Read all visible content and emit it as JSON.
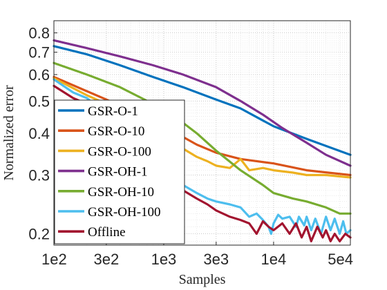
{
  "chart_data": {
    "type": "line",
    "xlabel": "Samples",
    "ylabel": "Normalized error",
    "x_scale": "log",
    "y_scale": "log",
    "xlim": [
      100,
      50000
    ],
    "ylim": [
      0.185,
      0.87
    ],
    "x_ticks": [
      {
        "value": 100,
        "label": "1e2"
      },
      {
        "value": 300,
        "label": "3e2"
      },
      {
        "value": 1000,
        "label": "1e3"
      },
      {
        "value": 3000,
        "label": "3e3"
      },
      {
        "value": 10000,
        "label": "1e4"
      },
      {
        "value": 50000,
        "label": "5e4"
      }
    ],
    "y_ticks": [
      {
        "value": 0.2,
        "label": "0.2"
      },
      {
        "value": 0.3,
        "label": "0.3"
      },
      {
        "value": 0.4,
        "label": "0.4"
      },
      {
        "value": 0.5,
        "label": "0.5"
      },
      {
        "value": 0.6,
        "label": "0.6"
      },
      {
        "value": 0.7,
        "label": "0.7"
      },
      {
        "value": 0.8,
        "label": "0.8"
      }
    ],
    "grid": true,
    "legend_position": "bottom-left",
    "series": [
      {
        "name": "GSR-O-1",
        "color": "#0072BD",
        "points": [
          [
            100,
            0.73
          ],
          [
            200,
            0.69
          ],
          [
            400,
            0.64
          ],
          [
            800,
            0.59
          ],
          [
            1500,
            0.55
          ],
          [
            3000,
            0.505
          ],
          [
            5000,
            0.475
          ],
          [
            10000,
            0.42
          ],
          [
            20000,
            0.385
          ],
          [
            50000,
            0.345
          ]
        ]
      },
      {
        "name": "GSR-O-10",
        "color": "#D95319",
        "points": [
          [
            100,
            0.59
          ],
          [
            200,
            0.535
          ],
          [
            400,
            0.485
          ],
          [
            700,
            0.44
          ],
          [
            1000,
            0.415
          ],
          [
            1500,
            0.39
          ],
          [
            2000,
            0.37
          ],
          [
            3000,
            0.35
          ],
          [
            5000,
            0.335
          ],
          [
            10000,
            0.325
          ],
          [
            20000,
            0.31
          ],
          [
            50000,
            0.3
          ]
        ]
      },
      {
        "name": "GSR-O-100",
        "color": "#EDB120",
        "points": [
          [
            100,
            0.585
          ],
          [
            200,
            0.52
          ],
          [
            300,
            0.49
          ],
          [
            400,
            0.455
          ],
          [
            600,
            0.43
          ],
          [
            800,
            0.405
          ],
          [
            1200,
            0.375
          ],
          [
            1500,
            0.36
          ],
          [
            2000,
            0.34
          ],
          [
            2500,
            0.33
          ],
          [
            3000,
            0.32
          ],
          [
            4000,
            0.315
          ],
          [
            5000,
            0.335
          ],
          [
            6000,
            0.31
          ],
          [
            8000,
            0.315
          ],
          [
            10000,
            0.31
          ],
          [
            15000,
            0.305
          ],
          [
            20000,
            0.3
          ],
          [
            30000,
            0.3
          ],
          [
            50000,
            0.295
          ]
        ]
      },
      {
        "name": "GSR-OH-1",
        "color": "#7E2F8E",
        "points": [
          [
            100,
            0.76
          ],
          [
            200,
            0.72
          ],
          [
            400,
            0.68
          ],
          [
            800,
            0.64
          ],
          [
            1500,
            0.6
          ],
          [
            3000,
            0.55
          ],
          [
            5000,
            0.5
          ],
          [
            8000,
            0.455
          ],
          [
            12000,
            0.415
          ],
          [
            20000,
            0.375
          ],
          [
            30000,
            0.345
          ],
          [
            50000,
            0.32
          ]
        ]
      },
      {
        "name": "GSR-OH-10",
        "color": "#77AC30",
        "points": [
          [
            100,
            0.65
          ],
          [
            200,
            0.6
          ],
          [
            400,
            0.55
          ],
          [
            800,
            0.49
          ],
          [
            1500,
            0.43
          ],
          [
            2000,
            0.4
          ],
          [
            3000,
            0.355
          ],
          [
            5000,
            0.31
          ],
          [
            8000,
            0.28
          ],
          [
            10000,
            0.265
          ],
          [
            15000,
            0.255
          ],
          [
            20000,
            0.25
          ],
          [
            30000,
            0.24
          ],
          [
            40000,
            0.23
          ],
          [
            50000,
            0.23
          ]
        ]
      },
      {
        "name": "GSR-OH-100",
        "color": "#4DBEEE",
        "points": [
          [
            100,
            0.58
          ],
          [
            150,
            0.53
          ],
          [
            200,
            0.51
          ],
          [
            250,
            0.48
          ],
          [
            300,
            0.44
          ],
          [
            400,
            0.415
          ],
          [
            500,
            0.395
          ],
          [
            600,
            0.37
          ],
          [
            700,
            0.355
          ],
          [
            800,
            0.34
          ],
          [
            1000,
            0.32
          ],
          [
            1200,
            0.3
          ],
          [
            1500,
            0.28
          ],
          [
            2000,
            0.265
          ],
          [
            2500,
            0.255
          ],
          [
            3000,
            0.25
          ],
          [
            4000,
            0.245
          ],
          [
            5000,
            0.24
          ],
          [
            6000,
            0.225
          ],
          [
            7000,
            0.23
          ],
          [
            8000,
            0.22
          ],
          [
            9000,
            0.21
          ],
          [
            9500,
            0.2
          ],
          [
            10000,
            0.215
          ],
          [
            11000,
            0.228
          ],
          [
            12000,
            0.222
          ],
          [
            14000,
            0.225
          ],
          [
            16000,
            0.21
          ],
          [
            17000,
            0.225
          ],
          [
            19000,
            0.212
          ],
          [
            20000,
            0.225
          ],
          [
            22000,
            0.205
          ],
          [
            24000,
            0.222
          ],
          [
            27000,
            0.2
          ],
          [
            30000,
            0.225
          ],
          [
            33000,
            0.205
          ],
          [
            36000,
            0.222
          ],
          [
            40000,
            0.2
          ],
          [
            43000,
            0.218
          ],
          [
            46000,
            0.2
          ],
          [
            50000,
            0.205
          ]
        ]
      },
      {
        "name": "Offline",
        "color": "#A2142F",
        "points": [
          [
            100,
            0.555
          ],
          [
            150,
            0.51
          ],
          [
            200,
            0.49
          ],
          [
            250,
            0.46
          ],
          [
            300,
            0.43
          ],
          [
            400,
            0.395
          ],
          [
            500,
            0.375
          ],
          [
            600,
            0.355
          ],
          [
            800,
            0.335
          ],
          [
            1000,
            0.31
          ],
          [
            1200,
            0.29
          ],
          [
            1500,
            0.27
          ],
          [
            2000,
            0.255
          ],
          [
            2500,
            0.245
          ],
          [
            3000,
            0.235
          ],
          [
            4000,
            0.225
          ],
          [
            5000,
            0.22
          ],
          [
            6000,
            0.215
          ],
          [
            7000,
            0.2
          ],
          [
            8000,
            0.218
          ],
          [
            9000,
            0.21
          ],
          [
            10000,
            0.205
          ],
          [
            12000,
            0.215
          ],
          [
            14000,
            0.2
          ],
          [
            16000,
            0.215
          ],
          [
            18000,
            0.195
          ],
          [
            20000,
            0.21
          ],
          [
            22000,
            0.19
          ],
          [
            25000,
            0.21
          ],
          [
            28000,
            0.195
          ],
          [
            30000,
            0.205
          ],
          [
            33000,
            0.19
          ],
          [
            36000,
            0.2
          ],
          [
            40000,
            0.19
          ],
          [
            45000,
            0.2
          ],
          [
            50000,
            0.195
          ]
        ]
      }
    ]
  }
}
